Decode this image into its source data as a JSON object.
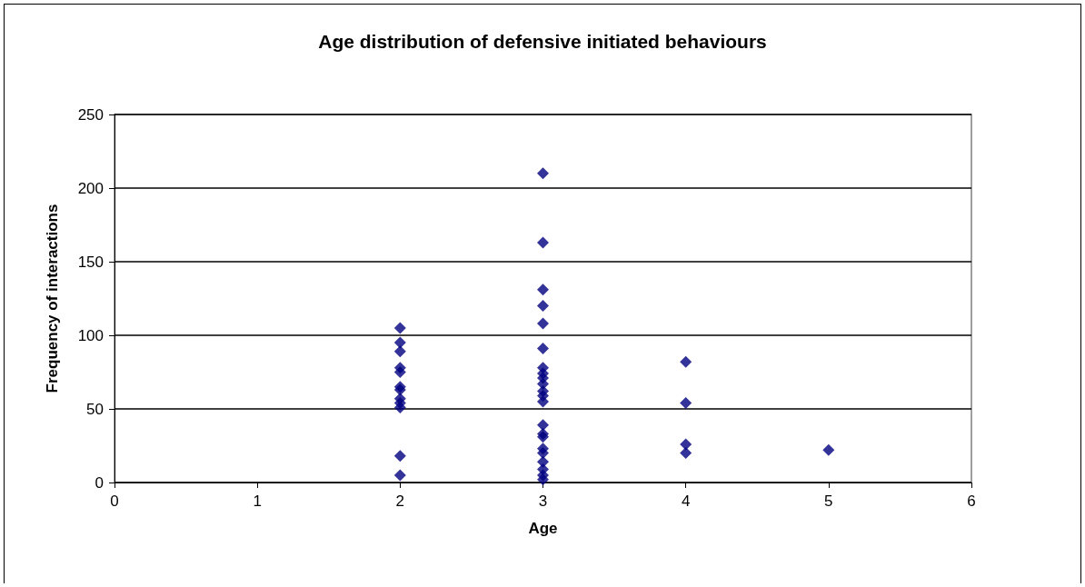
{
  "chart_data": {
    "type": "scatter",
    "title": "Age distribution of defensive initiated behaviours",
    "xlabel": "Age",
    "ylabel": "Frequency of interactions",
    "x": [
      2,
      2,
      2,
      2,
      2,
      2,
      2,
      2,
      2,
      2,
      2,
      2,
      3,
      3,
      3,
      3,
      3,
      3,
      3,
      3,
      3,
      3,
      3,
      3,
      3,
      3,
      3,
      3,
      3,
      3,
      3,
      3,
      3,
      3,
      4,
      4,
      4,
      4,
      5
    ],
    "values": [
      105,
      95,
      89,
      78,
      75,
      65,
      63,
      57,
      54,
      51,
      18,
      5,
      210,
      163,
      131,
      120,
      108,
      91,
      78,
      74,
      71,
      67,
      62,
      59,
      55,
      39,
      33,
      31,
      23,
      20,
      14,
      9,
      5,
      2,
      82,
      54,
      26,
      20,
      22
    ],
    "color": "#000080",
    "marker": "diamond",
    "xlim": [
      0,
      6
    ],
    "xticks": [
      0,
      1,
      2,
      3,
      4,
      5,
      6
    ],
    "ylim": [
      0,
      250
    ],
    "yticks": [
      0,
      50,
      100,
      150,
      200,
      250
    ],
    "grid": "y"
  }
}
